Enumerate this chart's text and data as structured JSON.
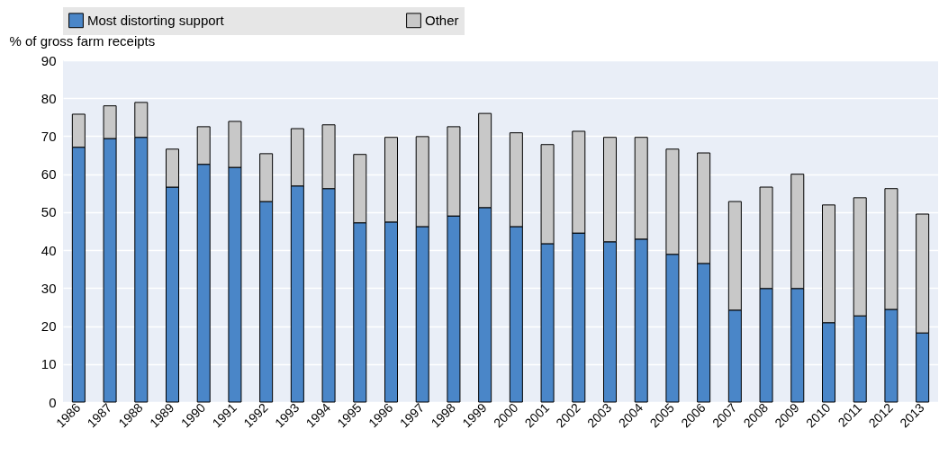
{
  "chart_data": {
    "type": "bar",
    "stacked": true,
    "ylabel": "% of gross farm receipts",
    "categories": [
      "1986",
      "1987",
      "1988",
      "1989",
      "1990",
      "1991",
      "1992",
      "1993",
      "1994",
      "1995",
      "1996",
      "1997",
      "1998",
      "1999",
      "2000",
      "2001",
      "2002",
      "2003",
      "2004",
      "2005",
      "2006",
      "2007",
      "2008",
      "2009",
      "2010",
      "2011",
      "2012",
      "2013"
    ],
    "series": [
      {
        "name": "Most distorting support",
        "color": "#4a86c8",
        "values": [
          67.1,
          69.4,
          69.7,
          56.6,
          62.6,
          61.8,
          52.8,
          56.9,
          56.2,
          47.2,
          47.4,
          46.2,
          49,
          51.2,
          46.2,
          41.7,
          44.5,
          42.2,
          42.9,
          38.9,
          36.5,
          24.2,
          29.9,
          29.9,
          20.9,
          22.7,
          24.4,
          18.2
        ]
      },
      {
        "name": "Other",
        "color": "#c8c8c8",
        "values": [
          8.7,
          8.6,
          9.2,
          10,
          9.9,
          12.1,
          12.6,
          15.1,
          16.8,
          18,
          22.3,
          23.7,
          23.5,
          24.8,
          24.7,
          26.1,
          26.8,
          27.5,
          26.8,
          27.7,
          29.1,
          28.6,
          26.7,
          30.1,
          31,
          31.1,
          31.8,
          31.3
        ]
      }
    ],
    "ylim": [
      0,
      90
    ],
    "yticks": [
      0,
      10,
      20,
      30,
      40,
      50,
      60,
      70,
      80,
      90
    ],
    "grid": "y",
    "legend": "top"
  }
}
